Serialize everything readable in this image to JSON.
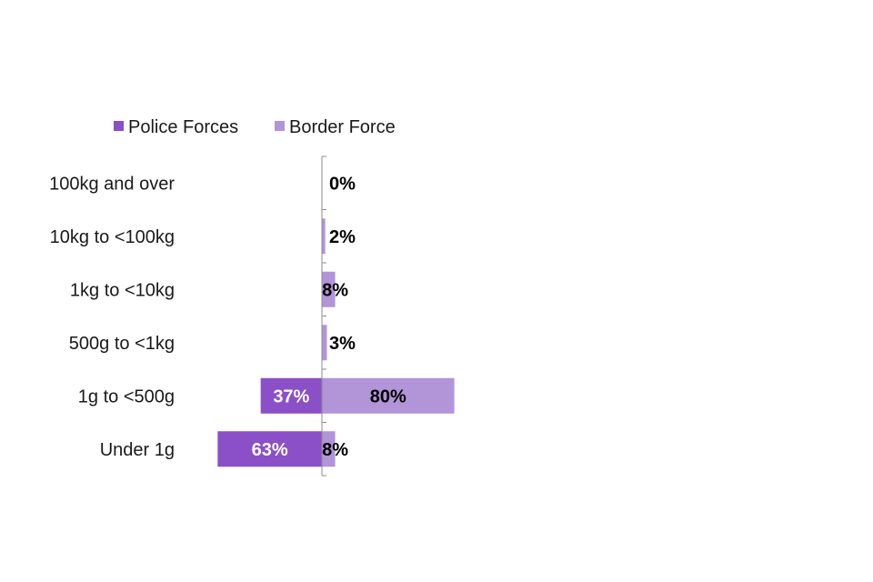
{
  "chart_data": {
    "type": "bar",
    "orientation": "horizontal",
    "layout": "diverging",
    "categories": [
      "100kg and over",
      "10kg to <100kg",
      "1kg to <10kg",
      "500g to <1kg",
      "1g to <500g",
      "Under 1g"
    ],
    "series": [
      {
        "name": "Police Forces",
        "color": "#8b4fc8",
        "values": [
          0,
          0,
          0,
          0,
          37,
          63
        ],
        "labels": [
          "",
          "",
          "",
          "",
          "37%",
          "63%"
        ],
        "label_color": "#ffffff"
      },
      {
        "name": "Border Force",
        "color": "#b294d8",
        "values": [
          0,
          2,
          8,
          3,
          80,
          8
        ],
        "labels": [
          "0%",
          "2%",
          "8%",
          "3%",
          "80%",
          "8%"
        ],
        "label_color": "#000000"
      }
    ],
    "title": "",
    "xlabel": "",
    "ylabel": "",
    "legend_position": "top-left",
    "grid": false,
    "axis_color": "#8c8c8c"
  }
}
